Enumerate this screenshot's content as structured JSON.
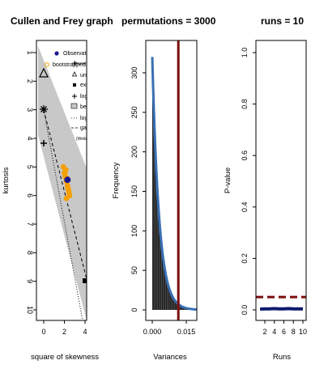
{
  "chart_data": [
    {
      "type": "scatter",
      "title": "Cullen and Frey graph",
      "xlabel": "square of skewness",
      "ylabel": "kurtosis",
      "xlim": [
        0,
        4
      ],
      "ylim": [
        10,
        1
      ],
      "x_ticks": [
        "0",
        "2",
        "4"
      ],
      "y_ticks": [
        "1",
        "2",
        "3",
        "4",
        "5",
        "6",
        "7",
        "8",
        "9",
        "10"
      ],
      "legend": {
        "placement": "top-right",
        "items": [
          "Observation",
          "bootstrapped values",
          "theoretical distributions",
          "normal",
          "uniform",
          "exponential",
          "logistic",
          "beta",
          "lognormal",
          "gamma",
          "(Weibull is close to gamma and lognormal)"
        ]
      },
      "observation": {
        "x": 2.3,
        "y": 5.45
      },
      "bootstrap": {
        "x": [
          1.9,
          2.0,
          2.1,
          2.2,
          2.3,
          2.4,
          2.5,
          2.15,
          2.25,
          2.35,
          2.05,
          2.45,
          2.2
        ],
        "y": [
          5.0,
          5.2,
          5.35,
          5.5,
          5.65,
          5.8,
          6.0,
          5.1,
          5.4,
          5.75,
          5.25,
          5.9,
          6.1
        ]
      },
      "normal": {
        "x": 0,
        "y": 3
      },
      "uniform": {
        "x": 0,
        "y": 1.8
      },
      "logistic": {
        "x": 0,
        "y": 4.2
      },
      "exponential": {
        "x": 4,
        "y": 9
      }
    },
    {
      "type": "histogram",
      "title": "permutations = 3000",
      "xlabel": "Variances",
      "ylabel": "Frequency",
      "xlim": [
        -0.003,
        0.022
      ],
      "ylim": [
        0,
        340
      ],
      "x_ticks": [
        "0.000",
        "0.015"
      ],
      "y_ticks": [
        "0",
        "50",
        "100",
        "150",
        "200",
        "250",
        "300"
      ],
      "bin_width": 0.00025,
      "bin_start": 0.0,
      "observed_variance": 0.0115,
      "colors": {
        "bars": "#000000",
        "density": "#3a6fb4",
        "observed": "#7b0c0c"
      }
    },
    {
      "type": "line",
      "title": "runs = 10",
      "xlabel": "Runs",
      "ylabel": "P-value",
      "xlim": [
        1,
        10.5
      ],
      "ylim": [
        -0.05,
        1.05
      ],
      "x_ticks": [
        "2",
        "4",
        "6",
        "8",
        "10"
      ],
      "y_ticks": [
        "0.0",
        "0.2",
        "0.4",
        "0.6",
        "0.8",
        "1.0"
      ],
      "x": [
        1,
        2,
        3,
        4,
        5,
        6,
        7,
        8,
        9,
        10
      ],
      "values": [
        0.003,
        0.004,
        0.004,
        0.005,
        0.004,
        0.004,
        0.005,
        0.004,
        0.004,
        0.004
      ],
      "threshold": 0.05,
      "colors": {
        "line": "#0c1a6e",
        "threshold": "#7b0c0c"
      }
    }
  ]
}
